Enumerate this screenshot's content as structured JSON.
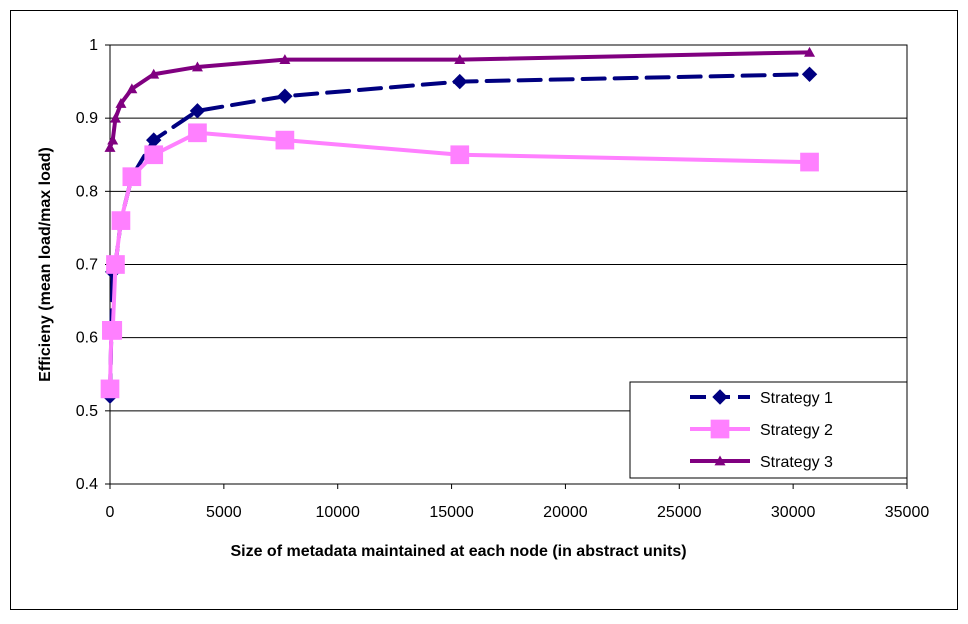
{
  "chart_data": {
    "type": "line",
    "title": "",
    "xlabel": "Size of metadata maintained at each node (in abstract units)",
    "ylabel": "Efficieny (mean load/max load)",
    "xlim": [
      0,
      35000
    ],
    "ylim": [
      0.4,
      1
    ],
    "x_ticks": [
      0,
      5000,
      10000,
      15000,
      20000,
      25000,
      30000,
      35000
    ],
    "y_ticks": [
      0.4,
      0.5,
      0.6,
      0.7,
      0.8,
      0.9,
      1
    ],
    "x_tick_labels": [
      "0",
      "5000",
      "10000",
      "15000",
      "20000",
      "25000",
      "30000",
      "35000"
    ],
    "y_tick_labels": [
      "0.4",
      "0.5",
      "0.6",
      "0.7",
      "0.8",
      "0.9",
      "1"
    ],
    "grid": "horizontal",
    "legend_position": "bottom-right",
    "series": [
      {
        "name": "Strategy 1",
        "color": "#000080",
        "line_style": "dashed",
        "marker": "diamond",
        "points": [
          [
            0,
            0.52
          ],
          [
            60,
            0.61
          ],
          [
            120,
            0.69
          ],
          [
            240,
            0.7
          ],
          [
            480,
            0.76
          ],
          [
            960,
            0.82
          ],
          [
            1920,
            0.87
          ],
          [
            3840,
            0.91
          ],
          [
            7680,
            0.93
          ],
          [
            15360,
            0.95
          ],
          [
            30720,
            0.96
          ]
        ]
      },
      {
        "name": "Strategy 2",
        "color": "#ff80ff",
        "line_style": "solid",
        "marker": "square",
        "points": [
          [
            0,
            0.53
          ],
          [
            60,
            0.61
          ],
          [
            120,
            0.61
          ],
          [
            240,
            0.7
          ],
          [
            480,
            0.76
          ],
          [
            960,
            0.82
          ],
          [
            1920,
            0.85
          ],
          [
            3840,
            0.88
          ],
          [
            7680,
            0.87
          ],
          [
            15360,
            0.85
          ],
          [
            30720,
            0.84
          ]
        ]
      },
      {
        "name": "Strategy 3",
        "color": "#800080",
        "line_style": "solid",
        "marker": "triangle",
        "points": [
          [
            0,
            0.86
          ],
          [
            120,
            0.87
          ],
          [
            240,
            0.9
          ],
          [
            480,
            0.92
          ],
          [
            960,
            0.94
          ],
          [
            1920,
            0.96
          ],
          [
            3840,
            0.97
          ],
          [
            7680,
            0.98
          ],
          [
            15360,
            0.98
          ],
          [
            30720,
            0.99
          ]
        ]
      }
    ]
  }
}
